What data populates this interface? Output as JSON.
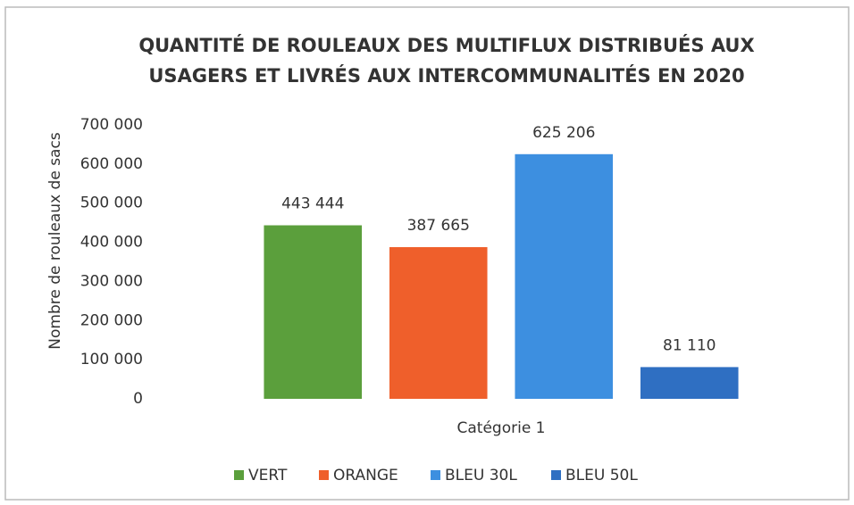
{
  "chart_data": {
    "type": "bar",
    "title": [
      "QUANTITÉ DE ROULEAUX DES MULTIFLUX DISTRIBUÉS AUX",
      "USAGERS ET LIVRÉS AUX INTERCOMMUNALITÉS EN 2020"
    ],
    "ylabel": "Nombre de rouleaux de sacs",
    "categories": [
      "Catégorie 1"
    ],
    "series": [
      {
        "name": "VERT",
        "color": "#5b9f3c",
        "values": [
          443444
        ],
        "value_labels": [
          "443 444"
        ]
      },
      {
        "name": "ORANGE",
        "color": "#ef5f2b",
        "values": [
          387665
        ],
        "value_labels": [
          "387 665"
        ]
      },
      {
        "name": "BLEU 30L",
        "color": "#3d8fe0",
        "values": [
          625206
        ],
        "value_labels": [
          "625 206"
        ]
      },
      {
        "name": "BLEU 50L",
        "color": "#2f6fc2",
        "values": [
          81110
        ],
        "value_labels": [
          "81 110"
        ]
      }
    ],
    "ylim": [
      0,
      700000
    ],
    "yticks": [
      0,
      {
        "value": 100000,
        "label": "100 000"
      },
      {
        "value": 200000,
        "label": "200 000"
      },
      {
        "value": 300000,
        "label": "300 000"
      },
      {
        "value": 400000,
        "label": "400 000"
      },
      {
        "value": 500000,
        "label": "500 000"
      },
      {
        "value": 600000,
        "label": "600 000"
      },
      {
        "value": 700000,
        "label": "700 000"
      }
    ],
    "grid": false,
    "legend": "bottom"
  }
}
